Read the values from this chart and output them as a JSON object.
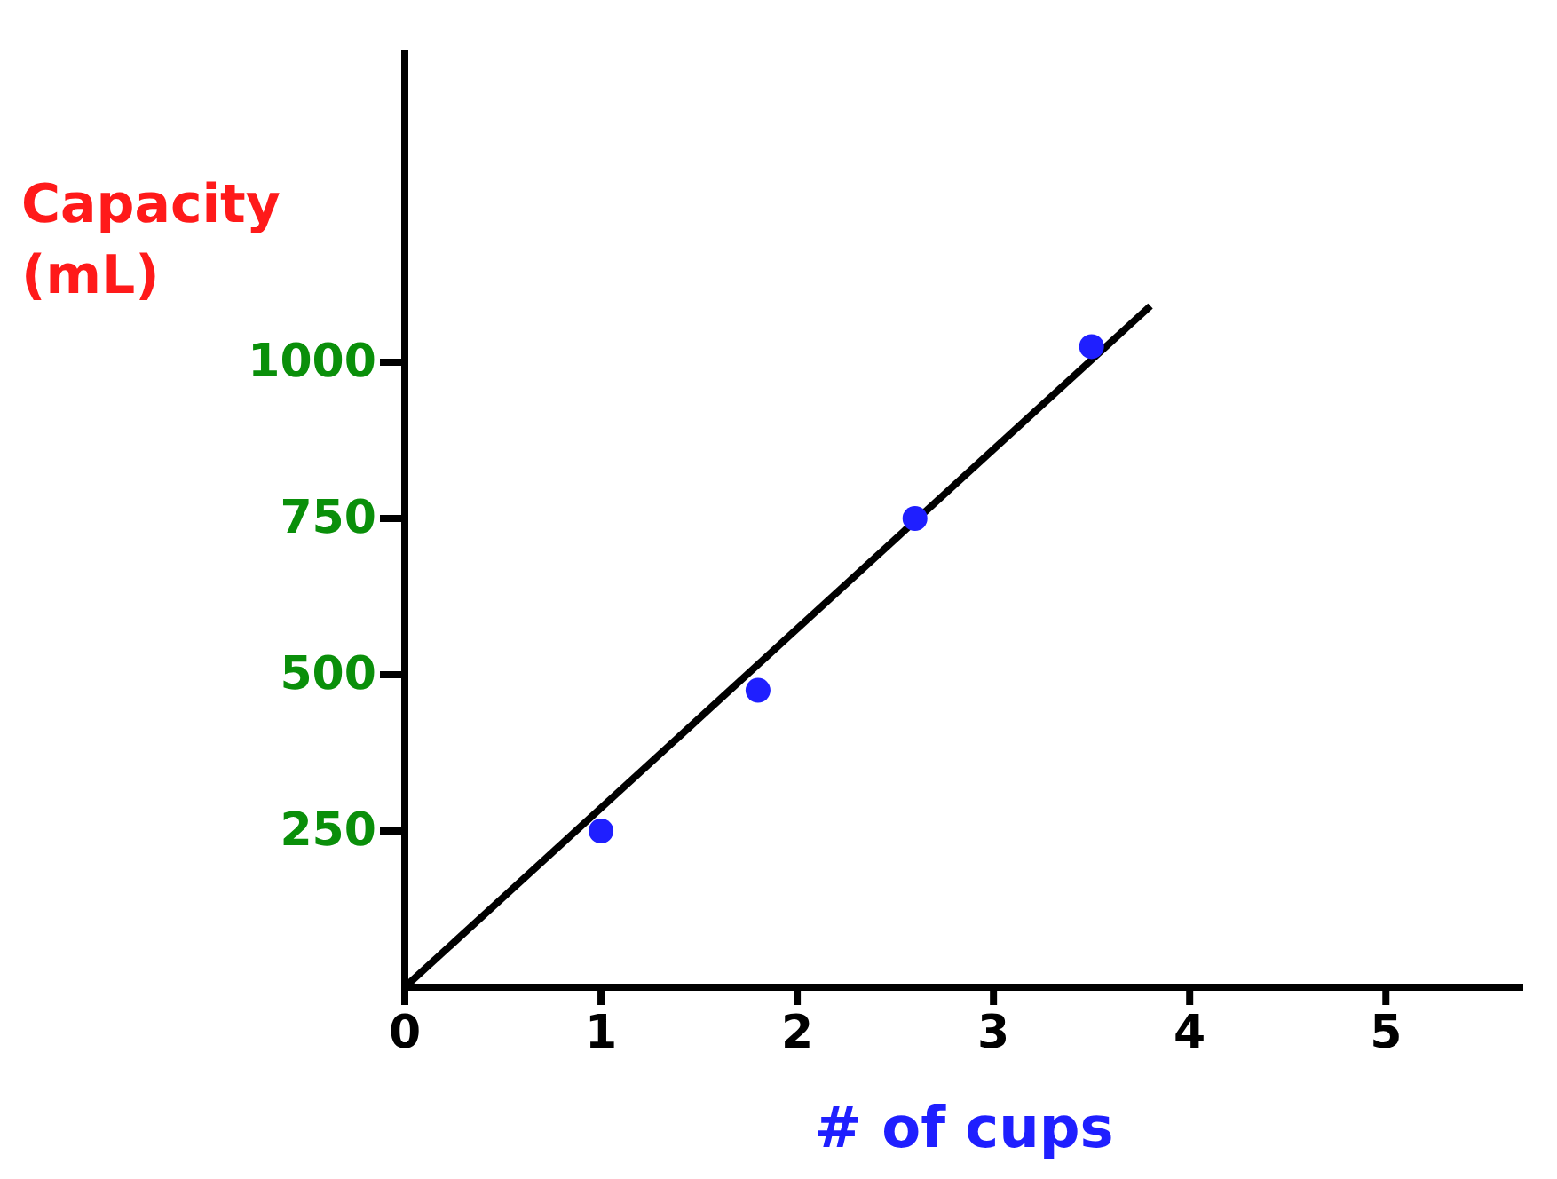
{
  "chart_data": {
    "type": "scatter",
    "xlabel": "# of cups",
    "ylabel": "Capacity (mL)",
    "xlim": [
      0,
      5.7
    ],
    "ylim": [
      0,
      1500
    ],
    "xticks": [
      0,
      1,
      2,
      3,
      4,
      5
    ],
    "yticks": [
      250,
      500,
      750,
      1000
    ],
    "grid": false,
    "legend": false,
    "marker": "circle",
    "series": [
      {
        "type": "scatter",
        "color": "#1f1fff",
        "x": [
          1,
          1.8,
          2.6,
          3.5
        ],
        "values": [
          250,
          475,
          750,
          1025
        ]
      },
      {
        "type": "line",
        "color": "#000000",
        "marker": "none",
        "line_style": "solid",
        "x": [
          0,
          3.8
        ],
        "values": [
          0,
          1090
        ]
      }
    ]
  }
}
